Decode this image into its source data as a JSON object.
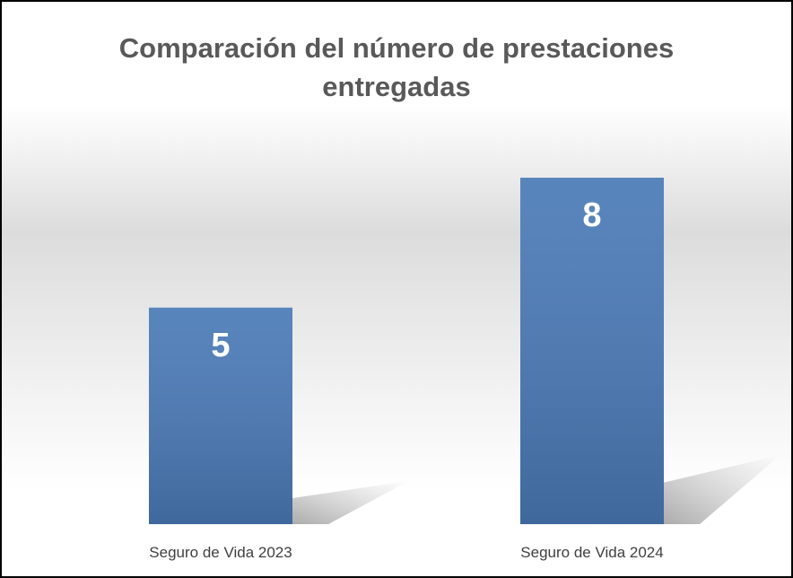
{
  "chart_data": {
    "type": "bar",
    "title": "Comparación del número de prestaciones entregadas",
    "categories": [
      "Seguro de Vida 2023",
      "Seguro de Vida 2024"
    ],
    "values": [
      5,
      8
    ],
    "color": "#4a7ab7"
  }
}
